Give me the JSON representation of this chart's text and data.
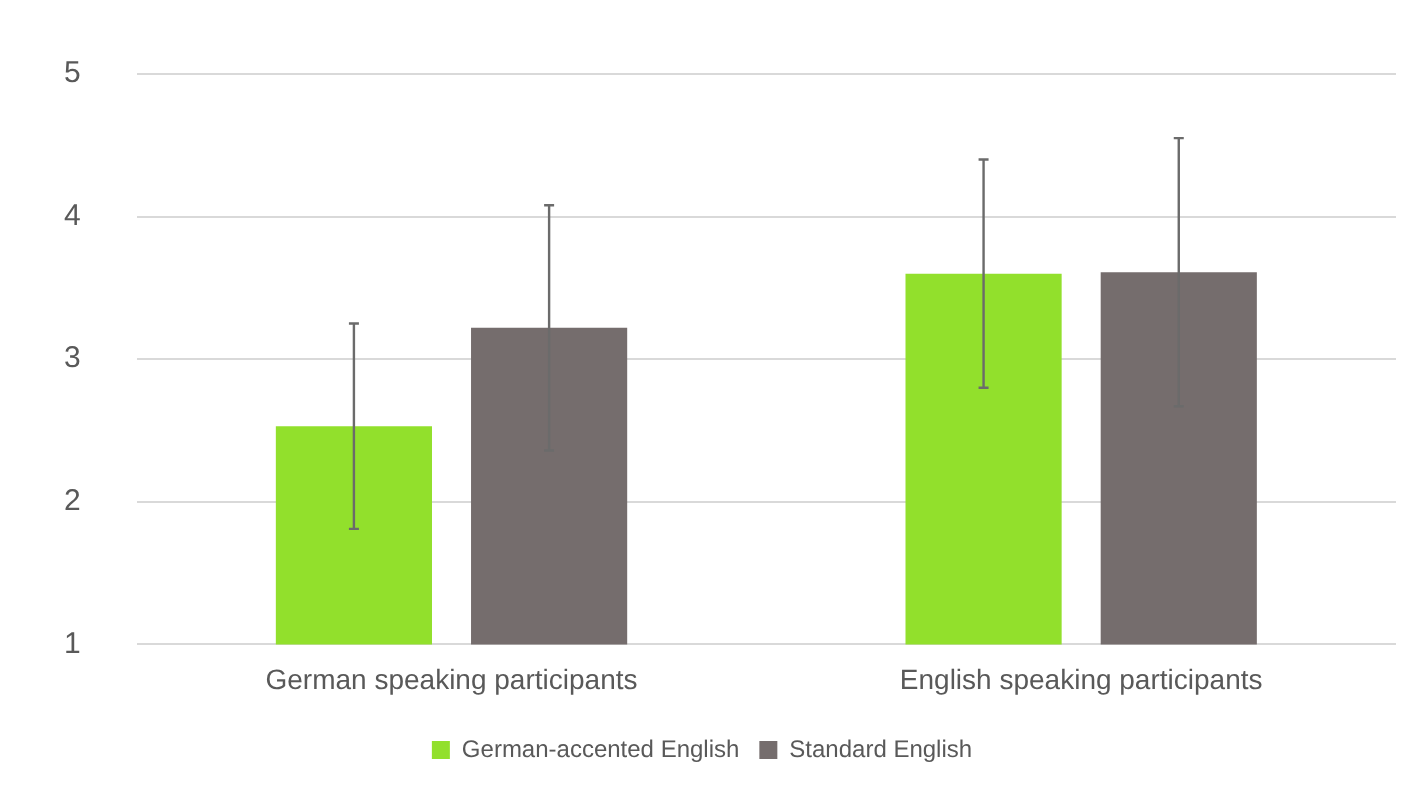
{
  "chart_data": {
    "type": "bar",
    "categories": [
      "German speaking participants",
      "English speaking participants"
    ],
    "series": [
      {
        "name": "German-accented English",
        "color": "#92e02c",
        "values": [
          2.53,
          3.6
        ],
        "errors": [
          0.72,
          0.8
        ]
      },
      {
        "name": "Standard English",
        "color": "#756d6d",
        "values": [
          3.22,
          3.61
        ],
        "errors": [
          0.86,
          0.94
        ]
      }
    ],
    "ylim": [
      1,
      5
    ],
    "yticks": [
      1,
      2,
      3,
      4,
      5
    ],
    "grid": "y",
    "legend": "bottom"
  }
}
